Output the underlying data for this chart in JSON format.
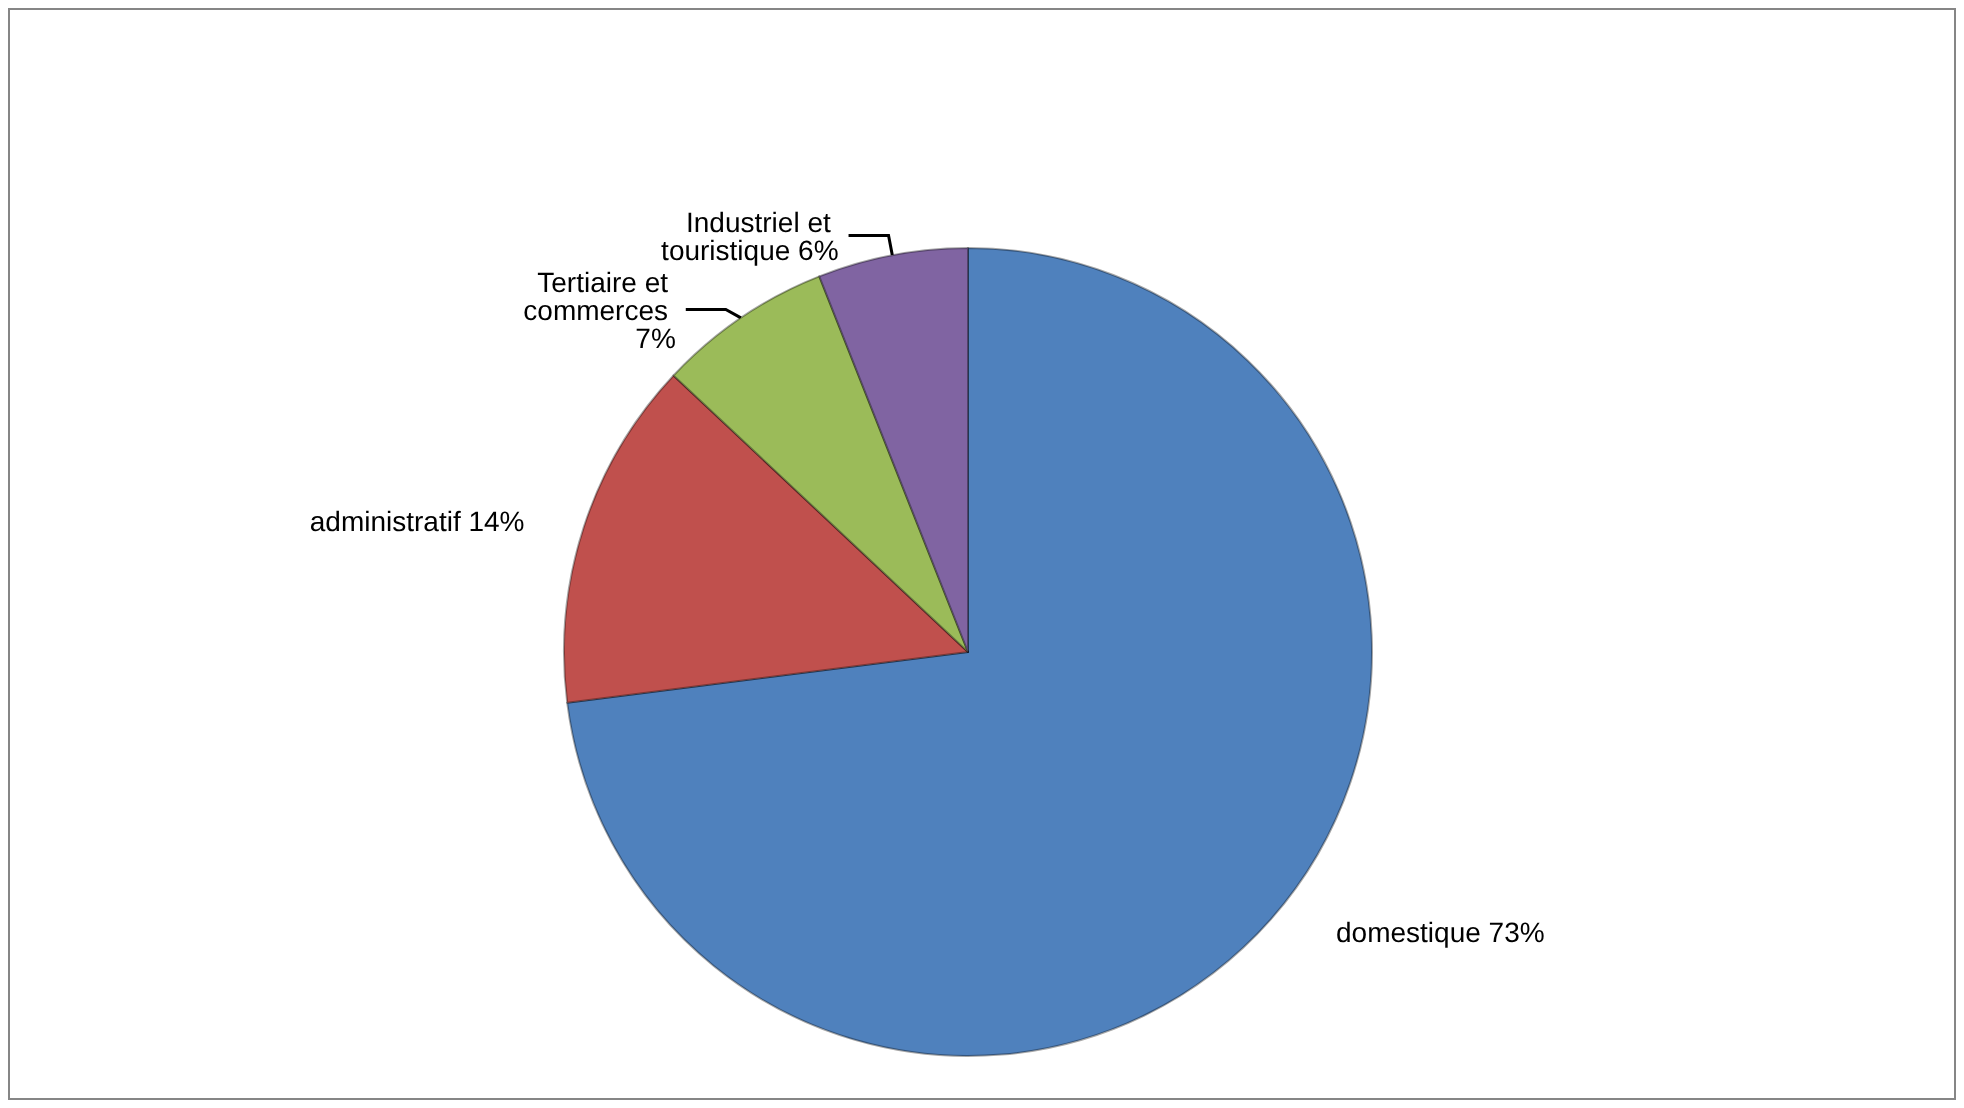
{
  "chart_data": {
    "type": "pie",
    "categories": [
      "domestique",
      "administratif",
      "Tertiaire et commerces",
      "Industriel et touristique"
    ],
    "values": [
      73,
      14,
      7,
      6
    ],
    "colors": [
      "#4f81bd",
      "#c0504d",
      "#9bbb59",
      "#8064a2"
    ],
    "value_labels": [
      "73%",
      "14%",
      "7%",
      "6%"
    ]
  }
}
